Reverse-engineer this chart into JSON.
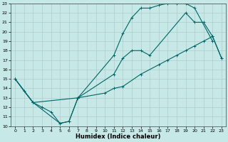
{
  "xlabel": "Humidex (Indice chaleur)",
  "background_color": "#c6e8e6",
  "grid_color": "#b0cccc",
  "line_color": "#006666",
  "xlim": [
    -0.5,
    23.5
  ],
  "ylim": [
    10,
    23
  ],
  "xticks": [
    0,
    1,
    2,
    3,
    4,
    5,
    6,
    7,
    8,
    9,
    10,
    11,
    12,
    13,
    14,
    15,
    16,
    17,
    18,
    19,
    20,
    21,
    22,
    23
  ],
  "yticks": [
    10,
    11,
    12,
    13,
    14,
    15,
    16,
    17,
    18,
    19,
    20,
    21,
    22,
    23
  ],
  "line1_x": [
    0,
    1,
    2,
    3,
    4,
    5,
    6,
    7,
    11,
    12,
    13,
    14,
    15,
    16,
    17,
    18,
    19,
    20,
    22
  ],
  "line1_y": [
    15,
    13.7,
    12.5,
    12.0,
    11.5,
    10.3,
    10.5,
    13.0,
    17.5,
    19.8,
    21.5,
    22.5,
    22.5,
    22.8,
    23.0,
    23.0,
    23.0,
    22.5,
    19.0
  ],
  "line2_x": [
    0,
    2,
    7,
    11,
    12,
    13,
    14,
    15,
    19,
    20,
    21,
    22,
    23
  ],
  "line2_y": [
    15,
    12.5,
    13.0,
    15.5,
    17.2,
    18.0,
    18.0,
    17.5,
    22.0,
    21.0,
    21.0,
    19.5,
    17.2
  ],
  "line3_x": [
    0,
    2,
    5,
    6,
    7,
    10,
    11,
    12,
    14,
    16,
    17,
    18,
    19,
    20,
    21,
    22,
    23
  ],
  "line3_y": [
    15,
    12.5,
    10.3,
    10.5,
    13.0,
    13.5,
    14.0,
    14.2,
    15.5,
    16.5,
    17.0,
    17.5,
    18.0,
    18.5,
    19.0,
    19.5,
    17.2
  ]
}
